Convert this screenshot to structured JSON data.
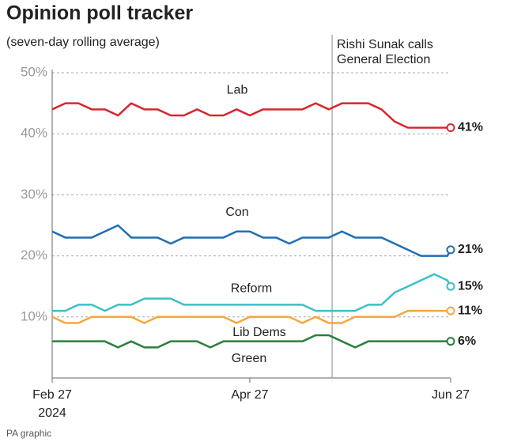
{
  "chart_data": {
    "type": "line",
    "title": "Opinion poll tracker",
    "subtitle": "(seven-day rolling average)",
    "source": "PA graphic",
    "annotation": {
      "x": "2024-05-22",
      "text": [
        "Rishi Sunak calls",
        "General Election"
      ]
    },
    "x": [
      "2024-02-27",
      "2024-03-02",
      "2024-03-06",
      "2024-03-10",
      "2024-03-14",
      "2024-03-18",
      "2024-03-22",
      "2024-03-26",
      "2024-03-30",
      "2024-04-03",
      "2024-04-07",
      "2024-04-11",
      "2024-04-15",
      "2024-04-19",
      "2024-04-23",
      "2024-04-27",
      "2024-05-01",
      "2024-05-05",
      "2024-05-09",
      "2024-05-13",
      "2024-05-17",
      "2024-05-21",
      "2024-05-25",
      "2024-05-29",
      "2024-06-02",
      "2024-06-06",
      "2024-06-10",
      "2024-06-14",
      "2024-06-18",
      "2024-06-22",
      "2024-06-26",
      "2024-06-27"
    ],
    "xlim": [
      "2024-02-27",
      "2024-06-27"
    ],
    "xticks": [
      {
        "value": "2024-02-27",
        "label": [
          "Feb 27",
          "2024"
        ]
      },
      {
        "value": "2024-04-27",
        "label": [
          "Apr 27"
        ]
      },
      {
        "value": "2024-06-27",
        "label": [
          "Jun 27"
        ]
      }
    ],
    "ylim": [
      0,
      50
    ],
    "yticks": [
      {
        "value": 10,
        "label": "10%"
      },
      {
        "value": 20,
        "label": "20%"
      },
      {
        "value": 30,
        "label": "30%"
      },
      {
        "value": 40,
        "label": "40%"
      },
      {
        "value": 50,
        "label": "50%"
      }
    ],
    "grid": true,
    "series": [
      {
        "name": "Lab",
        "color": "#d7262e",
        "values": [
          44,
          45,
          45,
          44,
          44,
          43,
          45,
          44,
          44,
          43,
          43,
          44,
          43,
          43,
          44,
          43,
          44,
          44,
          44,
          44,
          45,
          44,
          45,
          45,
          45,
          44,
          42,
          41,
          41,
          41,
          41,
          41
        ],
        "value_labels": [
          null,
          null,
          null,
          null,
          null,
          null,
          null,
          null,
          null,
          null,
          null,
          null,
          null,
          null,
          null,
          null,
          null,
          null,
          null,
          null,
          null,
          null,
          null,
          null,
          null,
          null,
          null,
          null,
          null,
          null,
          null,
          "41%"
        ]
      },
      {
        "name": "Con",
        "color": "#1f6fb2",
        "values": [
          24,
          23,
          23,
          23,
          24,
          25,
          23,
          23,
          23,
          22,
          23,
          23,
          23,
          23,
          24,
          24,
          23,
          23,
          22,
          23,
          23,
          23,
          24,
          23,
          23,
          23,
          22,
          21,
          20,
          20,
          20,
          21
        ],
        "value_labels": [
          null,
          null,
          null,
          null,
          null,
          null,
          null,
          null,
          null,
          null,
          null,
          null,
          null,
          null,
          null,
          null,
          null,
          null,
          null,
          null,
          null,
          null,
          null,
          null,
          null,
          null,
          null,
          null,
          null,
          null,
          null,
          "21%"
        ]
      },
      {
        "name": "Reform",
        "color": "#3dbfc6",
        "values": [
          11,
          11,
          12,
          12,
          11,
          12,
          12,
          13,
          13,
          13,
          12,
          12,
          12,
          12,
          12,
          12,
          12,
          12,
          12,
          12,
          11,
          11,
          11,
          11,
          12,
          12,
          14,
          15,
          16,
          17,
          16,
          15
        ],
        "value_labels": [
          null,
          null,
          null,
          null,
          null,
          null,
          null,
          null,
          null,
          null,
          null,
          null,
          null,
          null,
          null,
          null,
          null,
          null,
          null,
          null,
          null,
          null,
          null,
          null,
          null,
          null,
          null,
          null,
          null,
          null,
          null,
          "15%"
        ]
      },
      {
        "name": "Lib Dems",
        "color": "#f7a540",
        "values": [
          10,
          9,
          9,
          10,
          10,
          10,
          10,
          9,
          10,
          10,
          10,
          10,
          10,
          10,
          9,
          10,
          10,
          10,
          10,
          9,
          10,
          9,
          9,
          10,
          10,
          10,
          10,
          11,
          11,
          11,
          11,
          11
        ],
        "value_labels": [
          null,
          null,
          null,
          null,
          null,
          null,
          null,
          null,
          null,
          null,
          null,
          null,
          null,
          null,
          null,
          null,
          null,
          null,
          null,
          null,
          null,
          null,
          null,
          null,
          null,
          null,
          null,
          null,
          null,
          null,
          null,
          "11%"
        ]
      },
      {
        "name": "Green",
        "color": "#2a7f3e",
        "values": [
          6,
          6,
          6,
          6,
          6,
          5,
          6,
          5,
          5,
          6,
          6,
          6,
          5,
          6,
          6,
          6,
          6,
          6,
          6,
          6,
          7,
          7,
          6,
          5,
          6,
          6,
          6,
          6,
          6,
          6,
          6,
          6
        ],
        "value_labels": [
          null,
          null,
          null,
          null,
          null,
          null,
          null,
          null,
          null,
          null,
          null,
          null,
          null,
          null,
          null,
          null,
          null,
          null,
          null,
          null,
          null,
          null,
          null,
          null,
          null,
          null,
          null,
          null,
          null,
          null,
          null,
          "6%"
        ]
      }
    ]
  }
}
